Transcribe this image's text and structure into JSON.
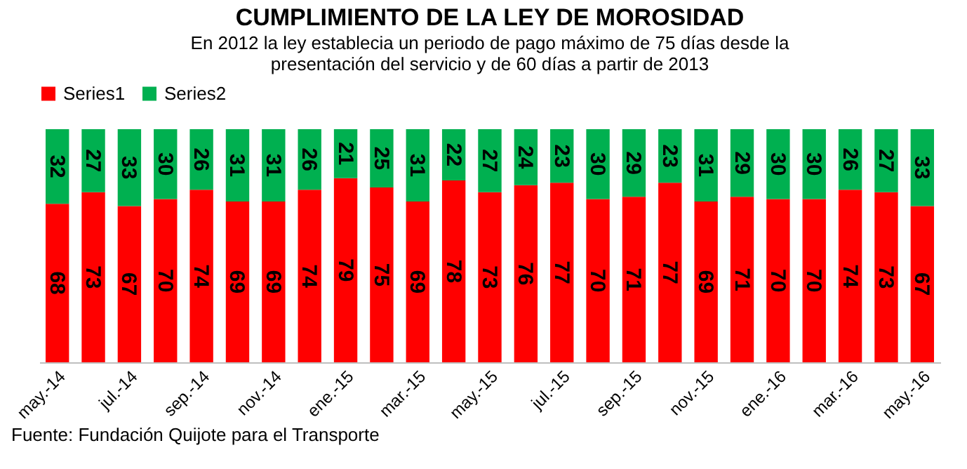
{
  "chart_data": {
    "type": "bar",
    "stacked": true,
    "title": "CUMPLIMIENTO DE LA LEY DE MOROSIDAD",
    "subtitle": "En 2012 la ley establecia un periodo de pago máximo de 75 días desde la presentación del servicio y de 60 días a partir de 2013",
    "categories": [
      "may.-14",
      null,
      "jul.-14",
      null,
      "sep.-14",
      null,
      "nov.-14",
      null,
      "ene.-15",
      null,
      "mar.-15",
      null,
      "may.-15",
      null,
      "jul.-15",
      null,
      "sep.-15",
      null,
      "nov.-15",
      null,
      "ene.-16",
      null,
      "mar.-16",
      null,
      "may.-16"
    ],
    "series": [
      {
        "name": "Series1",
        "color": "#ff0000",
        "values": [
          68,
          73,
          67,
          70,
          74,
          69,
          69,
          74,
          79,
          75,
          69,
          78,
          73,
          76,
          77,
          70,
          71,
          77,
          69,
          71,
          70,
          70,
          74,
          73,
          67
        ]
      },
      {
        "name": "Series2",
        "color": "#00b050",
        "values": [
          32,
          27,
          33,
          30,
          26,
          31,
          31,
          26,
          21,
          25,
          31,
          22,
          27,
          24,
          23,
          30,
          29,
          23,
          31,
          29,
          30,
          30,
          26,
          27,
          33
        ]
      }
    ],
    "data_labels": true,
    "legend": "top",
    "tick_labels": "x",
    "annotations": [
      "Fuente: Fundación Quijote para el Transporte"
    ]
  }
}
